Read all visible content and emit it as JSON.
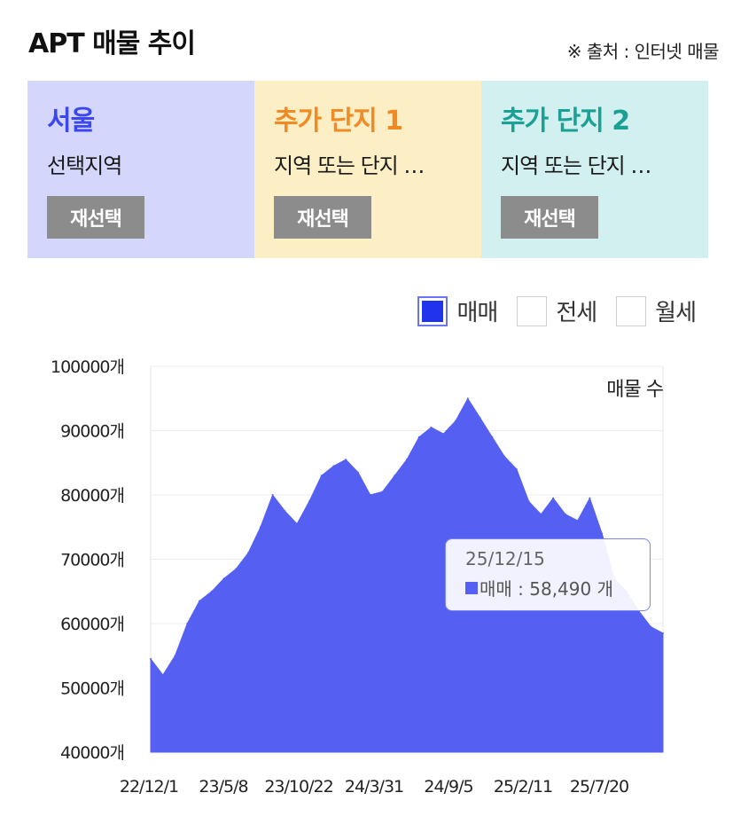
{
  "header": {
    "title": "APT 매물 추이",
    "source": "※ 출처 : 인터넷 매물"
  },
  "panels": [
    {
      "name": "서울",
      "desc": "선택지역",
      "button": "재선택",
      "bg": "#d4d7fb",
      "color": "#3c47f0"
    },
    {
      "name": "추가 단지 1",
      "desc": "지역 또는 단지 …",
      "button": "재선택",
      "bg": "#fdefc5",
      "color": "#f08a24"
    },
    {
      "name": "추가 단지 2",
      "desc": "지역 또는 단지 …",
      "button": "재선택",
      "bg": "#d3f0f0",
      "color": "#1aa094"
    }
  ],
  "legend": [
    {
      "label": "매매",
      "checked": true
    },
    {
      "label": "전세",
      "checked": false
    },
    {
      "label": "월세",
      "checked": false
    }
  ],
  "tooltip": {
    "date": "25/12/15",
    "text": "매매 : 58,490 개"
  },
  "chart_data": {
    "type": "area",
    "ylabel": "매물 수",
    "ylim": [
      40000,
      100000
    ],
    "ytick_labels": [
      "100000개",
      "90000개",
      "80000개",
      "70000개",
      "60000개",
      "50000개",
      "40000개"
    ],
    "xtick_labels": [
      "22/12/1",
      "23/5/8",
      "23/10/22",
      "24/3/31",
      "24/9/5",
      "25/2/11",
      "25/7/20"
    ],
    "series": [
      {
        "name": "매매",
        "color": "#5560f2",
        "x": [
          "22/12/1",
          "22/12/22",
          "23/1/20",
          "23/2/15",
          "23/3/20",
          "23/4/20",
          "23/5/8",
          "23/6/10",
          "23/7/10",
          "23/8/15",
          "23/9/20",
          "23/10/22",
          "23/11/20",
          "23/12/20",
          "24/1/20",
          "24/2/20",
          "24/3/31",
          "24/4/30",
          "24/5/31",
          "24/6/30",
          "24/7/31",
          "24/8/20",
          "24/9/5",
          "24/10/1",
          "24/11/1",
          "24/12/1",
          "24/12/25",
          "25/1/10",
          "25/1/25",
          "25/2/11",
          "25/2/25",
          "25/3/15",
          "25/4/15",
          "25/5/15",
          "25/6/10",
          "25/7/1",
          "25/7/20",
          "25/8/10",
          "25/9/5",
          "25/10/1",
          "25/11/1",
          "25/12/1",
          "25/12/15"
        ],
        "values": [
          54500,
          52000,
          55000,
          60000,
          63500,
          65000,
          67000,
          68500,
          71000,
          75000,
          80000,
          77500,
          75500,
          79000,
          83000,
          84500,
          85500,
          83500,
          80000,
          80500,
          83000,
          85500,
          89000,
          90500,
          89500,
          91500,
          95000,
          92000,
          89000,
          86000,
          84000,
          79000,
          77000,
          79500,
          77000,
          76000,
          79500,
          74000,
          67000,
          65000,
          62000,
          59500,
          58490
        ]
      }
    ]
  }
}
